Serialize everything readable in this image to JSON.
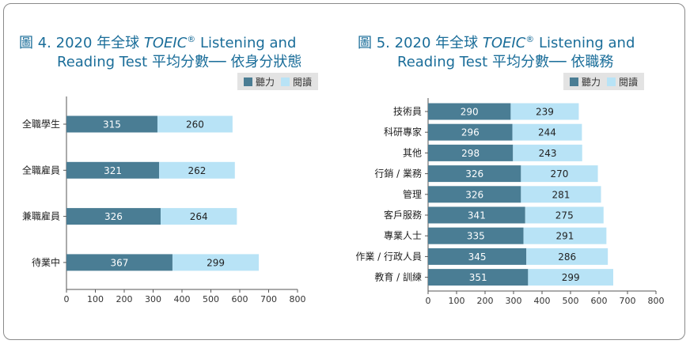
{
  "chart_data": [
    {
      "type": "bar",
      "title_prefix": "圖 4. 2020 年全球 ",
      "title_em": "TOEIC",
      "title_reg": "®",
      "title_rest": " Listening and",
      "title_line2": "Reading Test 平均分數── 依身分狀態",
      "categories": [
        "全職學生",
        "全職雇員",
        "兼職雇員",
        "待業中"
      ],
      "series": [
        {
          "name": "聽力",
          "values": [
            315,
            321,
            326,
            367
          ]
        },
        {
          "name": "閱讀",
          "values": [
            260,
            262,
            264,
            299
          ]
        }
      ],
      "xlim": [
        0,
        800
      ],
      "xticks": [
        0,
        100,
        200,
        300,
        400,
        500,
        600,
        700,
        800
      ],
      "orientation": "horizontal",
      "stacked": true,
      "legend_position": "top-right",
      "colors": [
        "#4a7d94",
        "#b8e3f6"
      ]
    },
    {
      "type": "bar",
      "title_prefix": "圖 5. 2020 年全球 ",
      "title_em": "TOEIC",
      "title_reg": "®",
      "title_rest": " Listening and",
      "title_line2": "Reading Test 平均分數── 依職務",
      "categories": [
        "技術員",
        "科研專家",
        "其他",
        "行銷 / 業務",
        "管理",
        "客戶服務",
        "專業人士",
        "作業 / 行政人員",
        "教育 / 訓練"
      ],
      "series": [
        {
          "name": "聽力",
          "values": [
            290,
            296,
            298,
            326,
            326,
            341,
            335,
            345,
            351
          ]
        },
        {
          "name": "閱讀",
          "values": [
            239,
            244,
            243,
            270,
            281,
            275,
            291,
            286,
            299
          ]
        }
      ],
      "xlim": [
        0,
        800
      ],
      "xticks": [
        0,
        100,
        200,
        300,
        400,
        500,
        600,
        700,
        800
      ],
      "orientation": "horizontal",
      "stacked": true,
      "legend_position": "top-right",
      "colors": [
        "#4a7d94",
        "#b8e3f6"
      ]
    }
  ]
}
